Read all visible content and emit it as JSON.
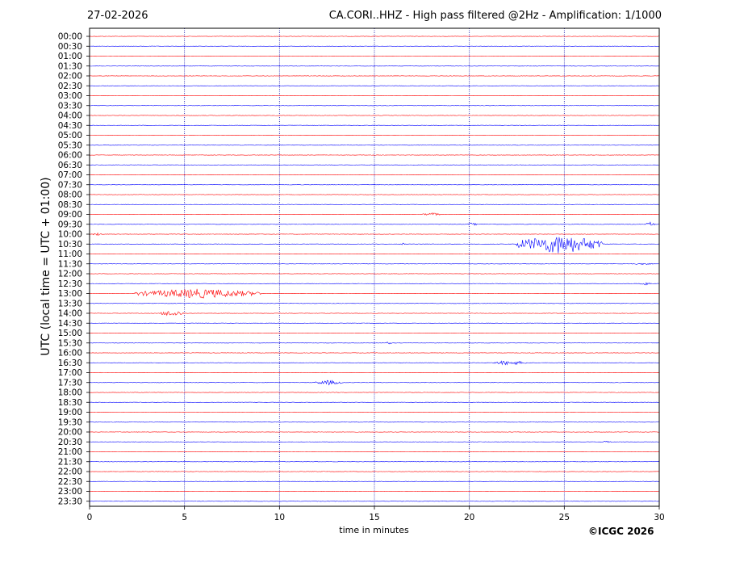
{
  "header": {
    "date": "27-02-2026",
    "title": "CA.CORI..HHZ - High pass filtered @2Hz - Amplification: 1/1000"
  },
  "footer": {
    "copyright": "©ICGC 2026"
  },
  "colors": {
    "red": "#ff0000",
    "blue": "#0000ff",
    "grid": "#0000aa"
  },
  "chart_data": {
    "type": "line",
    "title": "CA.CORI..HHZ - High pass filtered @2Hz - Amplification: 1/1000",
    "xlabel": "time in minutes",
    "ylabel": "UTC (local time = UTC + 01:00)",
    "xlim": [
      0,
      30
    ],
    "x_ticks": [
      "0",
      "5",
      "10",
      "15",
      "20",
      "25",
      "30"
    ],
    "x_gridlines": [
      5,
      10,
      15,
      20,
      25
    ],
    "grid": "vertical dotted",
    "trace_colors": "alternating red and blue",
    "rows": [
      "00:00",
      "00:30",
      "01:00",
      "01:30",
      "02:00",
      "02:30",
      "03:00",
      "03:30",
      "04:00",
      "04:30",
      "05:00",
      "05:30",
      "06:00",
      "06:30",
      "07:00",
      "07:30",
      "08:00",
      "08:30",
      "09:00",
      "09:30",
      "10:00",
      "10:30",
      "11:00",
      "11:30",
      "12:00",
      "12:30",
      "13:00",
      "13:30",
      "14:00",
      "14:30",
      "15:00",
      "15:30",
      "16:00",
      "16:30",
      "17:00",
      "17:30",
      "18:00",
      "18:30",
      "19:00",
      "19:30",
      "20:00",
      "20:30",
      "21:00",
      "21:30",
      "22:00",
      "22:30",
      "23:00",
      "23:30"
    ],
    "events": [
      {
        "row": "09:00",
        "from": 17.5,
        "to": 18.5,
        "amplitude": 2
      },
      {
        "row": "09:30",
        "from": 19.9,
        "to": 20.4,
        "amplitude": 2
      },
      {
        "row": "09:30",
        "from": 29.3,
        "to": 29.8,
        "amplitude": 3
      },
      {
        "row": "10:00",
        "from": 0.2,
        "to": 0.6,
        "amplitude": 2
      },
      {
        "row": "10:30",
        "from": 16.3,
        "to": 16.6,
        "amplitude": 2
      },
      {
        "row": "10:30",
        "from": 22.5,
        "to": 27.0,
        "amplitude": 12
      },
      {
        "row": "11:30",
        "from": 28.5,
        "to": 29.8,
        "amplitude": 1
      },
      {
        "row": "12:30",
        "from": 29.0,
        "to": 29.6,
        "amplitude": 2
      },
      {
        "row": "13:00",
        "from": 2.4,
        "to": 9.0,
        "amplitude": 6
      },
      {
        "row": "14:00",
        "from": 3.7,
        "to": 5.0,
        "amplitude": 4
      },
      {
        "row": "15:30",
        "from": 15.6,
        "to": 15.9,
        "amplitude": 2
      },
      {
        "row": "16:30",
        "from": 21.2,
        "to": 23.0,
        "amplitude": 3
      },
      {
        "row": "17:30",
        "from": 11.9,
        "to": 13.3,
        "amplitude": 3
      },
      {
        "row": "20:30",
        "from": 26.8,
        "to": 27.6,
        "amplitude": 1
      }
    ]
  }
}
